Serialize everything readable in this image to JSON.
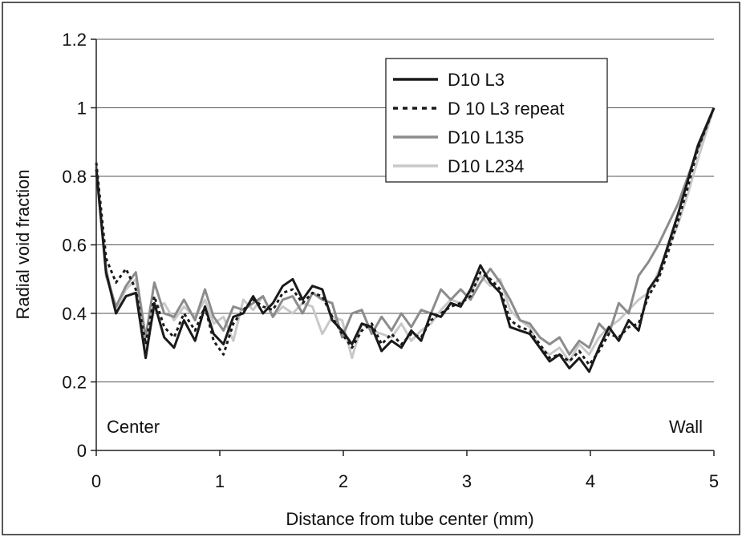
{
  "chart_data": {
    "type": "line",
    "xlabel": "Distance from tube center (mm)",
    "ylabel": "Radial void fraction",
    "xlim": [
      0,
      5
    ],
    "ylim": [
      0,
      1.2
    ],
    "x_ticks": [
      "0",
      "1",
      "2",
      "3",
      "4",
      "5"
    ],
    "y_ticks": [
      "0",
      "0.2",
      "0.4",
      "0.6",
      "0.8",
      "1",
      "1.2"
    ],
    "grid": "horizontal",
    "legend_position": "top-right",
    "annotations": {
      "left": "Center",
      "right": "Wall"
    },
    "series": [
      {
        "name": "D10 L3",
        "color": "#1a1a1a",
        "style": "solid",
        "x": [
          0,
          0.08,
          0.16,
          0.24,
          0.32,
          0.4,
          0.47,
          0.55,
          0.63,
          0.71,
          0.8,
          0.88,
          0.95,
          1.03,
          1.11,
          1.19,
          1.27,
          1.35,
          1.43,
          1.51,
          1.59,
          1.67,
          1.75,
          1.83,
          1.91,
          1.99,
          2.07,
          2.15,
          2.23,
          2.31,
          2.39,
          2.47,
          2.55,
          2.63,
          2.71,
          2.79,
          2.87,
          2.95,
          3.03,
          3.11,
          3.19,
          3.27,
          3.35,
          3.43,
          3.51,
          3.59,
          3.67,
          3.75,
          3.83,
          3.91,
          3.99,
          4.07,
          4.15,
          4.23,
          4.31,
          4.39,
          4.47,
          4.55,
          4.63,
          4.71,
          4.79,
          4.87,
          5.0
        ],
        "y": [
          0.82,
          0.52,
          0.4,
          0.45,
          0.46,
          0.27,
          0.43,
          0.33,
          0.3,
          0.38,
          0.32,
          0.42,
          0.34,
          0.31,
          0.39,
          0.4,
          0.45,
          0.4,
          0.43,
          0.48,
          0.5,
          0.44,
          0.48,
          0.47,
          0.38,
          0.35,
          0.31,
          0.37,
          0.36,
          0.29,
          0.32,
          0.3,
          0.35,
          0.32,
          0.4,
          0.39,
          0.43,
          0.42,
          0.47,
          0.54,
          0.49,
          0.46,
          0.36,
          0.35,
          0.34,
          0.3,
          0.26,
          0.28,
          0.24,
          0.27,
          0.23,
          0.3,
          0.36,
          0.32,
          0.38,
          0.35,
          0.47,
          0.51,
          0.6,
          0.69,
          0.79,
          0.89,
          1.0
        ]
      },
      {
        "name": "D 10 L3 repeat",
        "color": "#1a1a1a",
        "style": "dotted",
        "x": [
          0,
          0.08,
          0.16,
          0.24,
          0.32,
          0.4,
          0.47,
          0.55,
          0.63,
          0.71,
          0.8,
          0.88,
          0.95,
          1.03,
          1.11,
          1.19,
          1.27,
          1.35,
          1.43,
          1.51,
          1.59,
          1.67,
          1.75,
          1.83,
          1.91,
          1.99,
          2.07,
          2.15,
          2.23,
          2.31,
          2.39,
          2.47,
          2.55,
          2.63,
          2.71,
          2.79,
          2.87,
          2.95,
          3.03,
          3.11,
          3.19,
          3.27,
          3.35,
          3.43,
          3.51,
          3.59,
          3.67,
          3.75,
          3.83,
          3.91,
          3.99,
          4.07,
          4.15,
          4.23,
          4.31,
          4.39,
          4.47,
          4.55,
          4.63,
          4.71,
          4.79,
          4.87,
          5.0
        ],
        "y": [
          0.84,
          0.56,
          0.49,
          0.53,
          0.47,
          0.31,
          0.45,
          0.36,
          0.33,
          0.4,
          0.35,
          0.42,
          0.32,
          0.28,
          0.37,
          0.41,
          0.44,
          0.42,
          0.41,
          0.46,
          0.47,
          0.43,
          0.46,
          0.45,
          0.39,
          0.34,
          0.3,
          0.35,
          0.37,
          0.31,
          0.34,
          0.31,
          0.34,
          0.33,
          0.38,
          0.4,
          0.42,
          0.43,
          0.45,
          0.52,
          0.5,
          0.47,
          0.38,
          0.36,
          0.35,
          0.31,
          0.27,
          0.28,
          0.26,
          0.29,
          0.25,
          0.29,
          0.34,
          0.33,
          0.36,
          0.37,
          0.45,
          0.5,
          0.58,
          0.67,
          0.77,
          0.88,
          1.0
        ]
      },
      {
        "name": "D10 L135",
        "color": "#8c8c8c",
        "style": "solid",
        "x": [
          0,
          0.08,
          0.16,
          0.24,
          0.32,
          0.4,
          0.47,
          0.55,
          0.63,
          0.71,
          0.8,
          0.88,
          0.95,
          1.03,
          1.11,
          1.19,
          1.27,
          1.35,
          1.43,
          1.51,
          1.59,
          1.67,
          1.75,
          1.83,
          1.91,
          1.99,
          2.07,
          2.15,
          2.23,
          2.31,
          2.39,
          2.47,
          2.55,
          2.63,
          2.71,
          2.79,
          2.87,
          2.95,
          3.03,
          3.11,
          3.19,
          3.27,
          3.35,
          3.43,
          3.51,
          3.59,
          3.67,
          3.75,
          3.83,
          3.91,
          3.99,
          4.07,
          4.15,
          4.23,
          4.31,
          4.39,
          4.47,
          4.55,
          4.63,
          4.71,
          4.79,
          4.87,
          5.0
        ],
        "y": [
          0.83,
          0.51,
          0.42,
          0.48,
          0.52,
          0.33,
          0.49,
          0.4,
          0.39,
          0.44,
          0.38,
          0.47,
          0.39,
          0.35,
          0.42,
          0.41,
          0.43,
          0.45,
          0.39,
          0.44,
          0.45,
          0.4,
          0.46,
          0.44,
          0.43,
          0.33,
          0.4,
          0.41,
          0.34,
          0.39,
          0.35,
          0.4,
          0.36,
          0.41,
          0.4,
          0.47,
          0.44,
          0.47,
          0.44,
          0.49,
          0.53,
          0.49,
          0.44,
          0.38,
          0.37,
          0.33,
          0.31,
          0.33,
          0.28,
          0.32,
          0.3,
          0.37,
          0.34,
          0.43,
          0.4,
          0.51,
          0.55,
          0.6,
          0.66,
          0.72,
          0.8,
          0.88,
          1.0
        ]
      },
      {
        "name": "D10 L234",
        "color": "#c8c8c8",
        "style": "solid",
        "x": [
          0,
          0.08,
          0.16,
          0.24,
          0.32,
          0.4,
          0.47,
          0.55,
          0.63,
          0.71,
          0.8,
          0.88,
          0.95,
          1.03,
          1.11,
          1.19,
          1.27,
          1.35,
          1.43,
          1.51,
          1.59,
          1.67,
          1.75,
          1.83,
          1.91,
          1.99,
          2.07,
          2.15,
          2.23,
          2.31,
          2.39,
          2.47,
          2.55,
          2.63,
          2.71,
          2.79,
          2.87,
          2.95,
          3.03,
          3.11,
          3.19,
          3.27,
          3.35,
          3.43,
          3.51,
          3.59,
          3.67,
          3.75,
          3.83,
          3.91,
          3.99,
          4.07,
          4.15,
          4.23,
          4.31,
          4.39,
          4.47,
          4.55,
          4.63,
          4.71,
          4.79,
          4.87,
          5.0
        ],
        "y": [
          0.81,
          0.53,
          0.41,
          0.47,
          0.5,
          0.3,
          0.41,
          0.43,
          0.38,
          0.42,
          0.39,
          0.44,
          0.37,
          0.39,
          0.32,
          0.44,
          0.41,
          0.45,
          0.39,
          0.42,
          0.4,
          0.43,
          0.42,
          0.34,
          0.39,
          0.38,
          0.27,
          0.37,
          0.35,
          0.34,
          0.33,
          0.37,
          0.32,
          0.35,
          0.37,
          0.41,
          0.44,
          0.43,
          0.46,
          0.51,
          0.48,
          0.5,
          0.41,
          0.38,
          0.36,
          0.3,
          0.28,
          0.3,
          0.26,
          0.31,
          0.28,
          0.33,
          0.36,
          0.38,
          0.41,
          0.44,
          0.46,
          0.52,
          0.59,
          0.66,
          0.75,
          0.85,
          1.0
        ]
      }
    ]
  }
}
